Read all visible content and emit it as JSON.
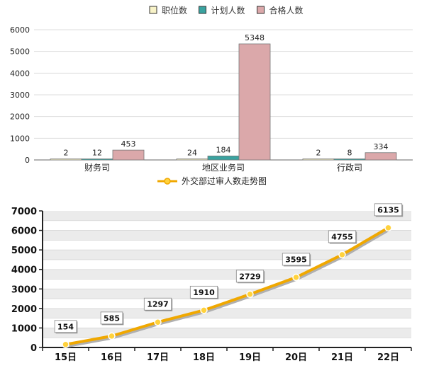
{
  "colors": {
    "positions": "#f8f3c8",
    "planned": "#3aa3a0",
    "qualified": "#dba8aa",
    "line": "#f0a800",
    "line_marker_fill": "#ffd23d",
    "band": "#ebebeb"
  },
  "chart_data": [
    {
      "type": "bar",
      "categories": [
        "财务司",
        "地区业务司",
        "行政司"
      ],
      "series": [
        {
          "name": "职位数",
          "values": [
            2,
            24,
            2
          ]
        },
        {
          "name": "计划人数",
          "values": [
            12,
            184,
            8
          ]
        },
        {
          "name": "合格人数",
          "values": [
            453,
            5348,
            334
          ]
        }
      ],
      "yticks": [
        "0",
        "1000",
        "2000",
        "3000",
        "4000",
        "5000",
        "6000"
      ],
      "ylim": [
        0,
        6000
      ],
      "grid": true,
      "legend_position": "top-center",
      "data_labels": true
    },
    {
      "type": "line",
      "legend": "外交部过审人数走势图",
      "categories": [
        "15日",
        "16日",
        "17日",
        "18日",
        "19日",
        "20日",
        "21日",
        "22日"
      ],
      "values": [
        154,
        585,
        1297,
        1910,
        2729,
        3595,
        4755,
        6135
      ],
      "yticks": [
        "0",
        "1000",
        "2000",
        "3000",
        "4000",
        "5000",
        "6000",
        "7000"
      ],
      "ylim": [
        0,
        7000
      ],
      "grid": true,
      "legend_position": "top-center",
      "data_labels": true
    }
  ]
}
